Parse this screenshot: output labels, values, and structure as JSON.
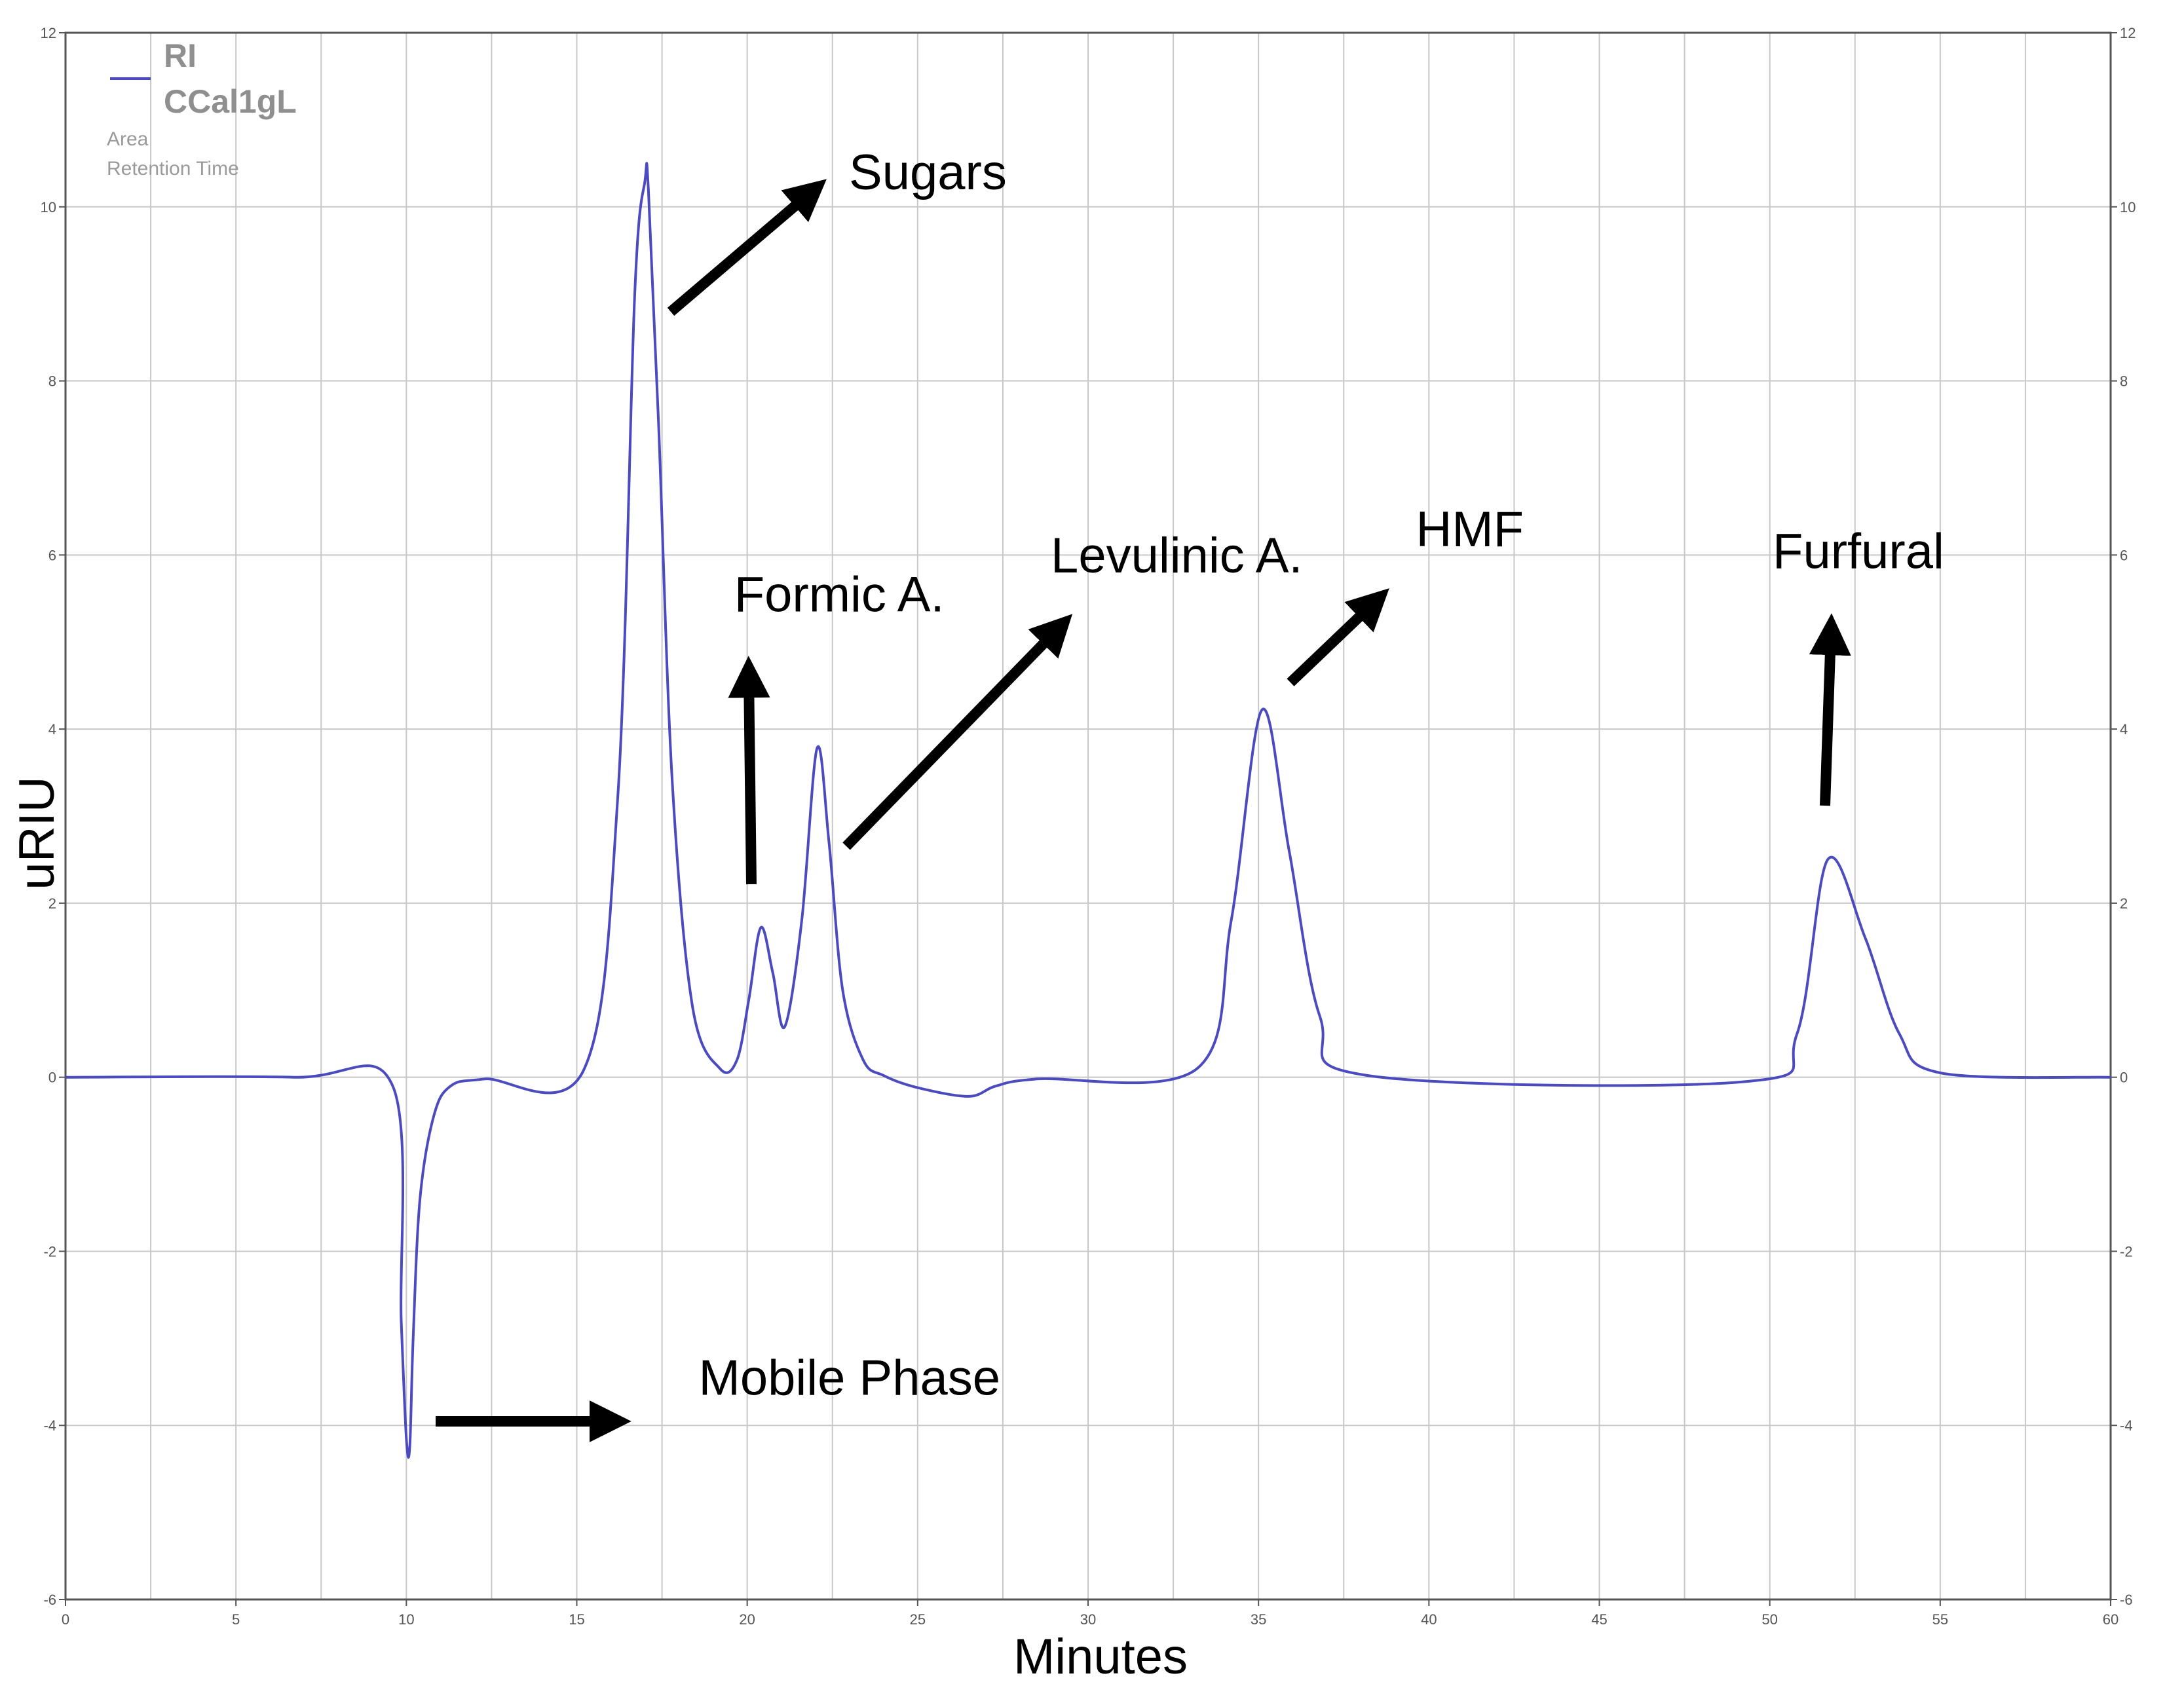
{
  "legend": {
    "series_name": "RI",
    "sample_name": "CCal1gL",
    "lines": [
      "Area",
      "Retention Time"
    ]
  },
  "chart_data": {
    "type": "line",
    "xlabel": "Minutes",
    "ylabel": "uRIU",
    "xlim": [
      0,
      60
    ],
    "ylim": [
      -6,
      12
    ],
    "x_ticks": [
      0,
      5,
      10,
      15,
      20,
      25,
      30,
      35,
      40,
      45,
      50,
      55,
      60
    ],
    "y_ticks": [
      -6,
      -4,
      -2,
      0,
      2,
      4,
      6,
      8,
      10,
      12
    ],
    "grid": true,
    "legend_position": "top-left",
    "line_color": "#4b4bbf",
    "series": [
      {
        "name": "RI",
        "x": [
          0,
          6.7,
          9.6,
          9.85,
          10.0,
          10.1,
          10.2,
          10.4,
          10.8,
          11.3,
          12.3,
          15.2,
          16.2,
          16.7,
          17.0,
          17.1,
          17.4,
          17.8,
          18.4,
          19.2,
          19.7,
          20.05,
          20.4,
          20.75,
          21.1,
          21.6,
          22.05,
          22.4,
          22.8,
          23.4,
          24.0,
          25.0,
          26.5,
          27.3,
          28.5,
          33.2,
          34.2,
          35.1,
          35.9,
          36.8,
          38.2,
          49.3,
          50.8,
          51.7,
          52.8,
          53.8,
          55.0,
          60.0
        ],
        "y": [
          0,
          0,
          -0.1,
          -2.8,
          -4.15,
          -4.25,
          -3.0,
          -1.4,
          -0.45,
          -0.1,
          -0.02,
          0.08,
          3.2,
          9.0,
          10.3,
          10.2,
          7.5,
          3.4,
          0.8,
          0.1,
          0.2,
          0.9,
          1.72,
          1.2,
          0.58,
          1.8,
          3.78,
          2.7,
          1.0,
          0.2,
          0.02,
          -0.12,
          -0.22,
          -0.1,
          -0.02,
          0.1,
          1.8,
          4.22,
          2.6,
          0.7,
          0.02,
          -0.05,
          0.5,
          2.5,
          1.6,
          0.5,
          0.05,
          0
        ]
      }
    ],
    "annotations": [
      {
        "label": "Sugars",
        "x": 25.3,
        "y": 10.2
      },
      {
        "label": "Formic A.",
        "x": 22.7,
        "y": 5.35
      },
      {
        "label": "Levulinic A.",
        "x": 32.6,
        "y": 5.8
      },
      {
        "label": "HMF",
        "x": 41.2,
        "y": 6.1
      },
      {
        "label": "Furfural",
        "x": 52.6,
        "y": 5.85
      },
      {
        "label": "Mobile Phase",
        "x": 23.0,
        "y": -3.65
      }
    ]
  }
}
